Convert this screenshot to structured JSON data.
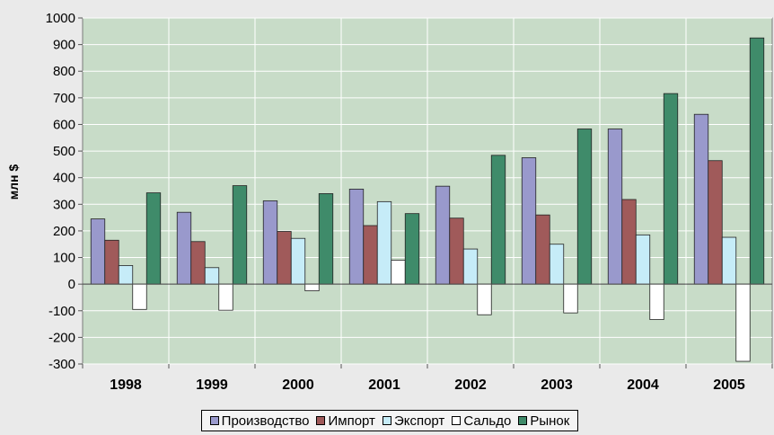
{
  "chart_data": {
    "type": "bar",
    "categories": [
      "1998",
      "1999",
      "2000",
      "2001",
      "2002",
      "2003",
      "2004",
      "2005"
    ],
    "series": [
      {
        "name": "Производство",
        "color": "#9999cc",
        "values": [
          245,
          270,
          313,
          357,
          368,
          475,
          583,
          638
        ]
      },
      {
        "name": "Импорт",
        "color": "#a05a5a",
        "values": [
          165,
          160,
          198,
          220,
          248,
          260,
          318,
          464
        ]
      },
      {
        "name": "Экспорт",
        "color": "#c6ecf8",
        "values": [
          70,
          62,
          172,
          310,
          132,
          150,
          185,
          176
        ]
      },
      {
        "name": "Сальдо",
        "color": "#ffffff",
        "values": [
          -95,
          -98,
          -25,
          90,
          -115,
          -108,
          -133,
          -290
        ]
      },
      {
        "name": "Рынок",
        "color": "#3f8b6a",
        "values": [
          343,
          370,
          340,
          265,
          484,
          583,
          716,
          925
        ]
      }
    ],
    "ylabel": "млн $",
    "xlabel": "",
    "ylim": [
      -300,
      1000
    ],
    "yticks": [
      "1000",
      "900",
      "800",
      "700",
      "600",
      "500",
      "400",
      "300",
      "200",
      "100",
      "0",
      "-100",
      "-200",
      "-300"
    ],
    "grid": true,
    "legend_position": "bottom",
    "plot_background": "#c8dcc8"
  }
}
